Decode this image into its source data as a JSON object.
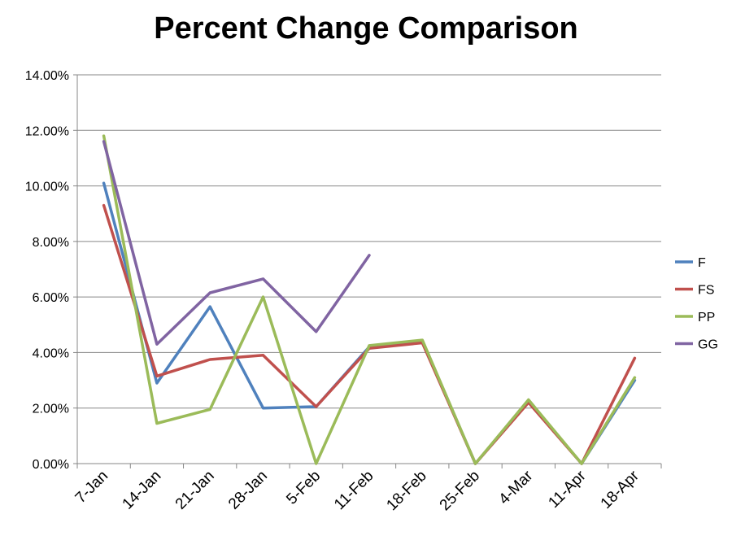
{
  "chart_data": {
    "type": "line",
    "title": "Percent Change Comparison",
    "xlabel": "",
    "ylabel": "",
    "categories": [
      "7-Jan",
      "14-Jan",
      "21-Jan",
      "28-Jan",
      "5-Feb",
      "11-Feb",
      "18-Feb",
      "25-Feb",
      "4-Mar",
      "11-Apr",
      "18-Apr"
    ],
    "y_ticks": [
      "0.00%",
      "2.00%",
      "4.00%",
      "6.00%",
      "8.00%",
      "10.00%",
      "12.00%",
      "14.00%"
    ],
    "ylim": [
      0,
      14
    ],
    "y_unit": "percent",
    "grid": true,
    "legend_position": "right",
    "series": [
      {
        "name": "F",
        "color": "#4F81BD",
        "values": [
          10.1,
          2.9,
          5.65,
          2.0,
          2.05,
          4.2,
          4.4,
          0.0,
          2.25,
          0.0,
          3.0
        ]
      },
      {
        "name": "FS",
        "color": "#C0504D",
        "values": [
          9.3,
          3.15,
          3.75,
          3.9,
          2.05,
          4.15,
          4.35,
          0.0,
          2.2,
          0.0,
          3.8
        ]
      },
      {
        "name": "PP",
        "color": "#9BBB59",
        "values": [
          11.8,
          1.45,
          1.95,
          6.0,
          0.0,
          4.25,
          4.45,
          0.0,
          2.3,
          0.0,
          3.1
        ]
      },
      {
        "name": "GG",
        "color": "#8064A2",
        "values": [
          11.6,
          4.3,
          6.15,
          6.65,
          4.75,
          7.5,
          null,
          null,
          null,
          null,
          null
        ]
      }
    ]
  }
}
